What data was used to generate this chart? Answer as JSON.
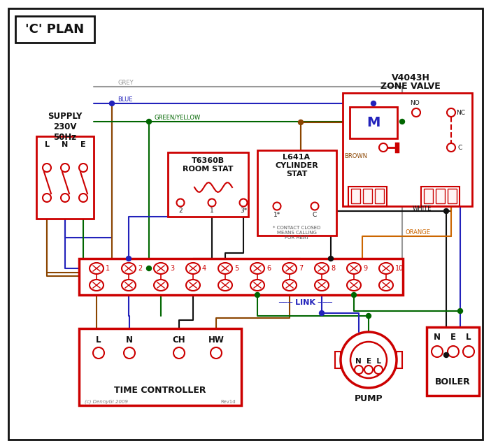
{
  "bg": "#ffffff",
  "RED": "#cc0000",
  "BLUE": "#2222bb",
  "GREEN": "#006600",
  "BROWN": "#8B4500",
  "GREY": "#999999",
  "ORANGE": "#cc6600",
  "BLACK": "#111111",
  "title": "'C' PLAN",
  "supply_label": "SUPPLY\n230V\n50Hz",
  "lne": [
    "L",
    "N",
    "E"
  ],
  "zone_title1": "V4043H",
  "zone_title2": "ZONE VALVE",
  "rs_title": "T6360B\nROOM STAT",
  "cs_title": "L641A\nCYLINDER\nSTAT",
  "tc_title": "TIME CONTROLLER",
  "pump_title": "PUMP",
  "boiler_title": "BOILER",
  "contact_note": "* CONTACT CLOSED\nMEANS CALLING\nFOR HEAT",
  "copyright": "(c) DennyGi 2009",
  "rev": "Rev1d",
  "grey_lbl": "GREY",
  "blue_lbl": "BLUE",
  "gy_lbl": "GREEN/YELLOW",
  "brown_lbl": "BROWN",
  "white_lbl": "WHITE",
  "orange_lbl": "ORANGE",
  "link_lbl": "LINK"
}
